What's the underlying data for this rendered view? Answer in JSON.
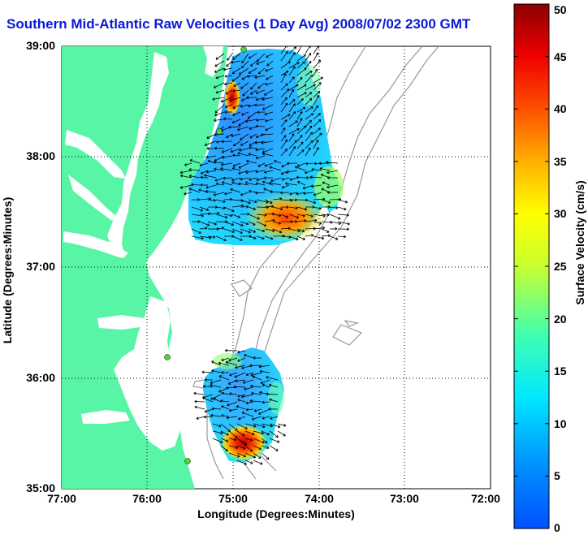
{
  "title": "Southern Mid-Atlantic Raw Velocities (1 Day Avg) 2008/07/02 2300 GMT",
  "xlabel": "Longitude (Degrees:Minutes)",
  "ylabel": "Latitude (Degrees:Minutes)",
  "x_ticks": [
    "77:00",
    "76:00",
    "75:00",
    "74:00",
    "73:00",
    "72:00"
  ],
  "y_ticks": [
    "39:00",
    "38:00",
    "37:00",
    "36:00",
    "35:00"
  ],
  "colorbar": {
    "label": "Surface Velocity (cm/s)",
    "ticks": [
      "50",
      "45",
      "40",
      "35",
      "30",
      "25",
      "20",
      "15",
      "10",
      "5",
      "0"
    ],
    "range": [
      0,
      50
    ]
  },
  "colors": {
    "land": "#57f5a5",
    "title": "#0a18d8",
    "grid": "#000000",
    "bathymetry": "#999999",
    "station": "#44dd22"
  },
  "map": {
    "lon_range": [
      -77,
      -72
    ],
    "lat_range": [
      35,
      39
    ],
    "grid": "dotted"
  }
}
